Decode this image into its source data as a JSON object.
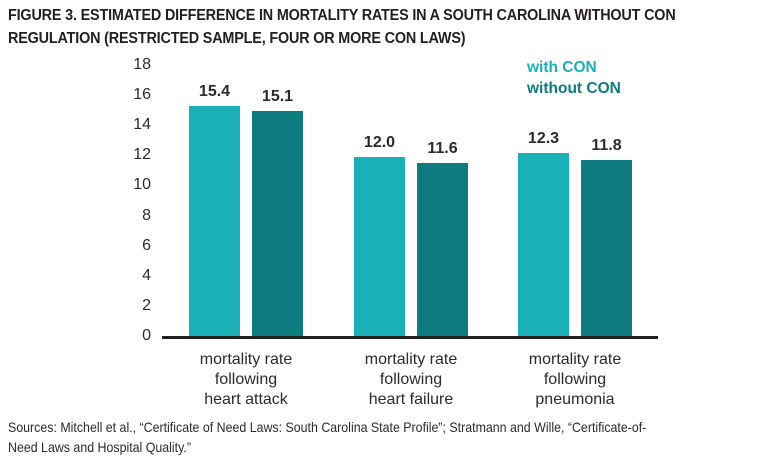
{
  "figure": {
    "title_line1": "FIGURE 3. ESTIMATED DIFFERENCE IN MORTALITY RATES IN A SOUTH CAROLINA WITHOUT CON",
    "title_line2": "REGULATION (RESTRICTED SAMPLE, FOUR OR MORE CON LAWS)",
    "sources_line1": "Sources: Mitchell et al., “Certificate of Need Laws: South Carolina State Profile”; Stratmann and Wille, “Certificate-of-",
    "sources_line2": "Need Laws and Hospital Quality.”"
  },
  "legend": {
    "items": [
      {
        "label": "with CON",
        "color": "#1BAFB7"
      },
      {
        "label": "without CON",
        "color": "#0E7B81"
      }
    ]
  },
  "colors": {
    "with_con": "#1BAFB7",
    "without_con": "#0E7B81",
    "title_text": "#231F20",
    "axis_text": "#2B2B2B",
    "baseline": "#231F20",
    "background": "#FFFFFF"
  },
  "chart_data": {
    "type": "bar",
    "title": "FIGURE 3. ESTIMATED DIFFERENCE IN MORTALITY RATES IN A SOUTH CAROLINA WITHOUT CON REGULATION (RESTRICTED SAMPLE, FOUR OR MORE CON LAWS)",
    "categories": [
      "mortality rate\nfollowing\nheart attack",
      "mortality rate\nfollowing\nheart failure",
      "mortality rate\nfollowing\npneumonia"
    ],
    "series": [
      {
        "name": "with CON",
        "values": [
          15.4,
          12.0,
          12.3
        ]
      },
      {
        "name": "without CON",
        "values": [
          15.1,
          11.6,
          11.8
        ]
      }
    ],
    "y_ticks": [
      0,
      2,
      4,
      6,
      8,
      10,
      12,
      14,
      16,
      18
    ],
    "ylim": [
      0,
      18
    ],
    "value_label_decimals": 1,
    "grid": false,
    "legend_position": "top-right",
    "xlabel": "",
    "ylabel": ""
  }
}
